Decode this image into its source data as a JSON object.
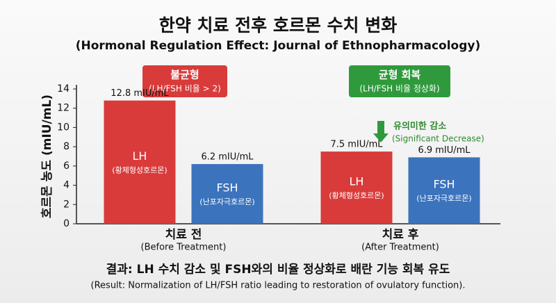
{
  "chart_data": {
    "type": "bar",
    "title": "한약 치료 전후 호르몬 수치 변화",
    "subtitle": "(Hormonal Regulation Effect: Journal of Ethnopharmacology)",
    "y_label": "호르몬 농도 (mIU/mL)",
    "categories": [
      "치료 전",
      "치료 후"
    ],
    "category_sublabels": [
      "(Before Treatment)",
      "(After Treatment)"
    ],
    "series": [
      {
        "name": "LH",
        "description": "(황체형성호르몬)",
        "color": "#d93b3b",
        "values": [
          12.8,
          7.5
        ],
        "value_labels": [
          "12.8 mIU/mL",
          "7.5 mIU/mL"
        ]
      },
      {
        "name": "FSH",
        "description": "(난포자극호르몬)",
        "color": "#3b73bd",
        "values": [
          6.2,
          6.9
        ],
        "value_labels": [
          "6.2 mIU/mL",
          "6.9 mIU/mL"
        ]
      }
    ],
    "ylim": [
      0,
      14
    ],
    "yticks": [
      0,
      2,
      4,
      6,
      8,
      10,
      12,
      14
    ],
    "grid": false,
    "annotations": [
      {
        "title": "불균형",
        "text": "(LH/FSH 비율 > 2)",
        "color": "#d93b3b"
      },
      {
        "title": "균형 회복",
        "text": "(LH/FSH 비율 정상화)",
        "color": "#2f9a3c"
      },
      {
        "title": "유의미한 감소",
        "text": "(Significant Decrease)",
        "color": "#2f8a2f"
      }
    ],
    "footer": {
      "title": "결과: LH 수치 감소 및 FSH와의 비율 정상화로 배란 기능 회복 유도",
      "text": "(Result: Normalization of LH/FSH ratio leading to restoration of ovulatory function)."
    }
  }
}
